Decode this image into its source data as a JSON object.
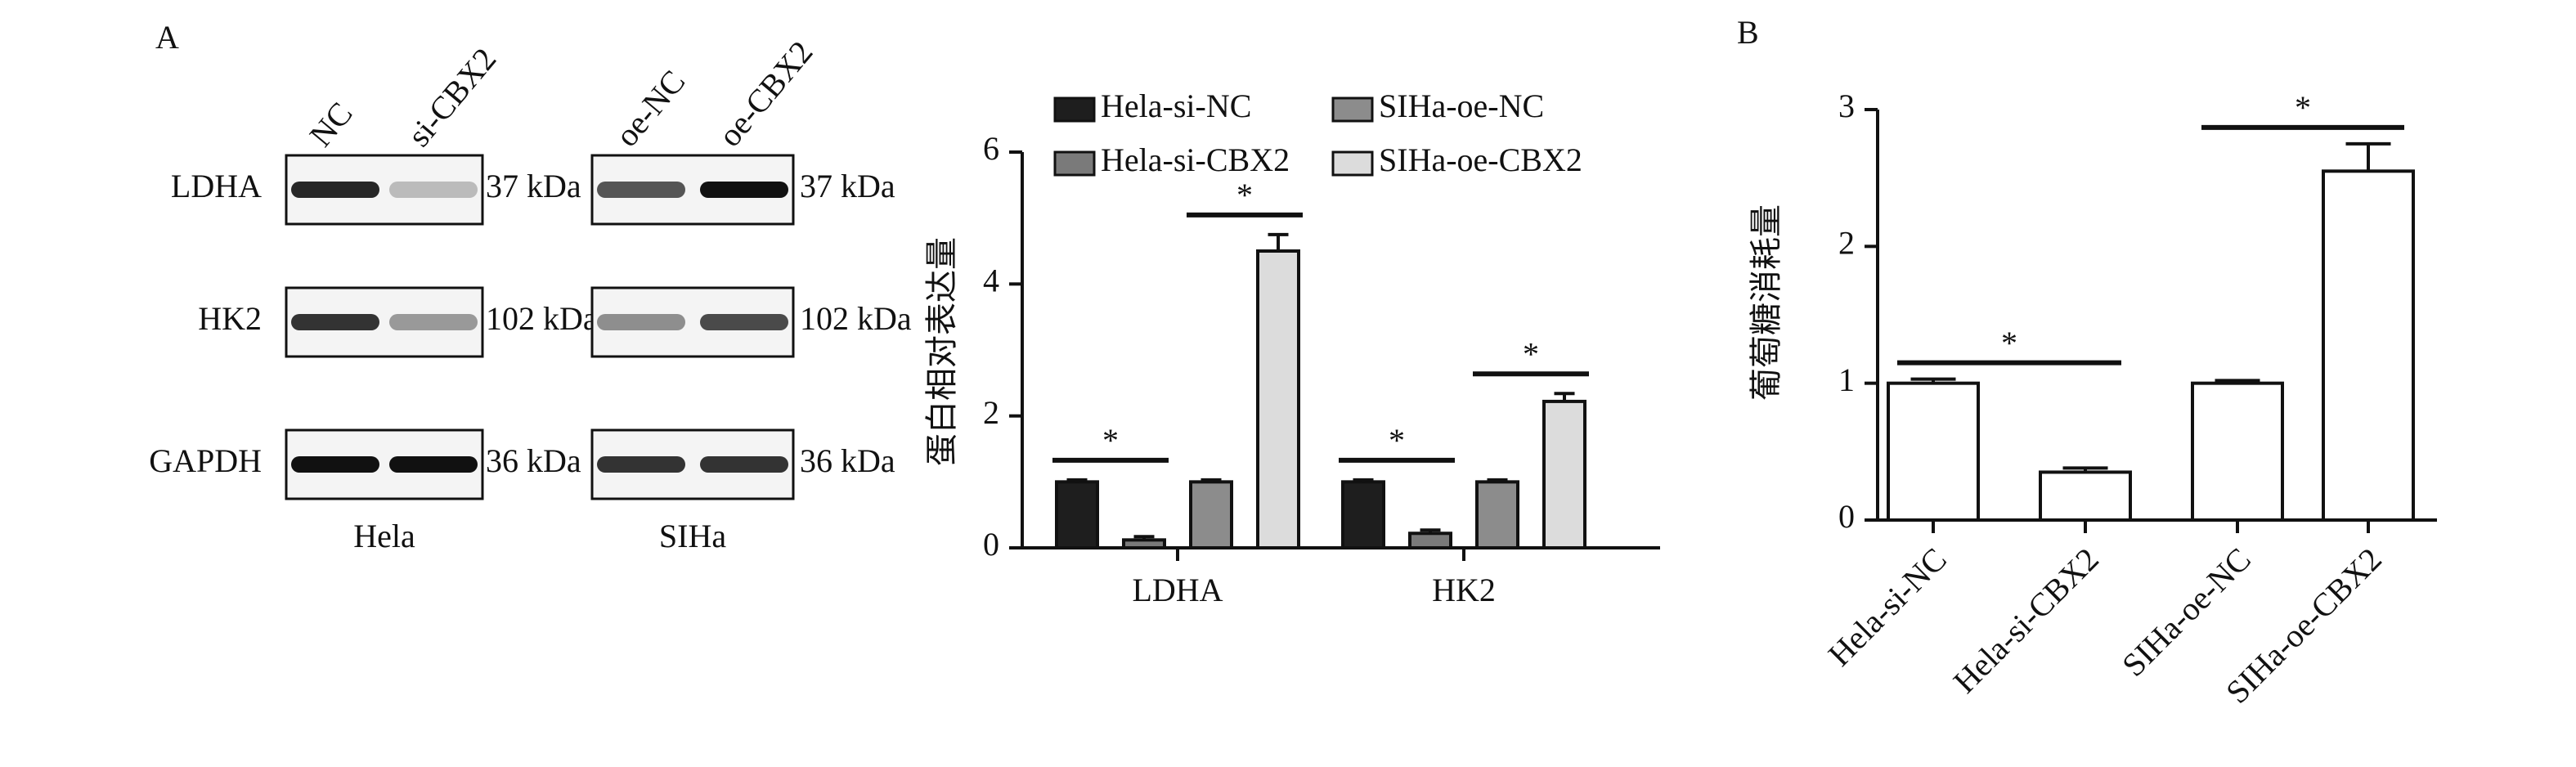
{
  "panel_labels": [
    "A",
    "B"
  ],
  "blot": {
    "rows": [
      "LDHA",
      "HK2",
      "GAPDH"
    ],
    "panels": [
      {
        "name": "Hela",
        "lanes": [
          "NC",
          "si-CBX2"
        ],
        "sizes": [
          "37 kDa",
          "102 kDa",
          "36 kDa"
        ]
      },
      {
        "name": "SIHa",
        "lanes": [
          "oe-NC",
          "oe-CBX2"
        ],
        "sizes": [
          "37 kDa",
          "102 kDa",
          "36 kDa"
        ]
      }
    ]
  },
  "chart_data": [
    {
      "type": "bar",
      "y_label": "蛋白相对表达量",
      "categories": [
        "LDHA",
        "HK2"
      ],
      "series": [
        {
          "name": "Hela-si-NC",
          "color": "#1e1e1e",
          "values": [
            1,
            1
          ],
          "errors": [
            0.03,
            0.03
          ]
        },
        {
          "name": "Hela-si-CBX2",
          "color": "#7a7a7a",
          "values": [
            0.12,
            0.22
          ],
          "errors": [
            0.05,
            0.05
          ]
        },
        {
          "name": "SIHa-oe-NC",
          "color": "#8c8c8c",
          "values": [
            1,
            1
          ],
          "errors": [
            0.03,
            0.03
          ]
        },
        {
          "name": "SIHa-oe-CBX2",
          "color": "#dcdcdc",
          "values": [
            4.5,
            2.22
          ],
          "errors": [
            0.25,
            0.12
          ]
        }
      ],
      "ylim": [
        0,
        6
      ],
      "yticks": [
        0,
        2,
        4,
        6
      ],
      "significance": [
        "*",
        "*",
        "*",
        "*"
      ]
    },
    {
      "type": "bar",
      "y_label": "葡萄糖消耗量",
      "categories": [
        "Hela-si-NC",
        "Hela-si-CBX2",
        "SIHa-oe-NC",
        "SIHa-oe-CBX2"
      ],
      "values": [
        1,
        0.35,
        1,
        2.55
      ],
      "errors": [
        0.03,
        0.03,
        0.02,
        0.2
      ],
      "color": "#ffffff",
      "ylim": [
        0,
        3
      ],
      "yticks": [
        0,
        1,
        2,
        3
      ],
      "significance": [
        "*",
        "*"
      ]
    }
  ]
}
